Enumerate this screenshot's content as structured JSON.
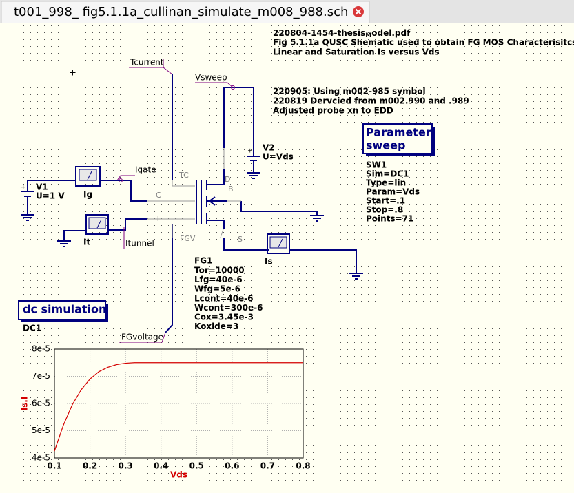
{
  "tab": {
    "title": "t001_998_ fig5.1.1a_cullinan_simulate_m008_988.sch"
  },
  "header_note": {
    "file": [
      "220804-1454-thesis",
      "M",
      "odel.pdf"
    ],
    "lines": [
      "Fig 5.1.1a QUSC Shematic used to obtain FG MOS Characterisitcs",
      "Linear and Saturation Is versus Vds"
    ]
  },
  "revision_note": {
    "lines": [
      "220905: Using m002-985 symbol",
      "220819 Dervcied from m002.990 and .989",
      "Adjusted probe xn to EDD"
    ]
  },
  "wire_labels": [
    "Tcurrent",
    "Vsweep",
    "Igate",
    "Itunnel",
    "FGvoltage"
  ],
  "sources": [
    {
      "name": "V1",
      "value": "U=1 V"
    },
    {
      "name": "V2",
      "value": "U=Vds"
    }
  ],
  "probes": [
    "Ig",
    "It",
    "Is"
  ],
  "pins": [
    "TC",
    "D",
    "B",
    "C",
    "T",
    "FGV",
    "S"
  ],
  "device": {
    "name": "FG1",
    "props": [
      "Tor=10000",
      "Lfg=40e-6",
      "Wfg=5e-6",
      "Lcont=40e-6",
      "Wcont=300e-6",
      "Cox=3.45e-3",
      "Koxide=3"
    ]
  },
  "sweep": {
    "title": [
      "Parameter",
      "sweep"
    ],
    "name": "SW1",
    "props": [
      "Sim=DC1",
      "Type=lin",
      "Param=Vds",
      "Start=.1",
      "Stop=.8",
      "Points=71"
    ]
  },
  "simulation": {
    "title": "dc simulation",
    "name": "DC1"
  },
  "chart_data": {
    "type": "line",
    "xlabel": "Vds",
    "ylabel": "Is.I",
    "color": "#d40000",
    "x": [
      0.1,
      0.125,
      0.15,
      0.175,
      0.2,
      0.225,
      0.25,
      0.275,
      0.3,
      0.325,
      0.35,
      0.4,
      0.5,
      0.6,
      0.7,
      0.8
    ],
    "values": [
      4.25e-05,
      5.2e-05,
      5.95e-05,
      6.5e-05,
      6.9e-05,
      7.17e-05,
      7.33e-05,
      7.43e-05,
      7.48e-05,
      7.5e-05,
      7.5e-05,
      7.5e-05,
      7.5e-05,
      7.5e-05,
      7.5e-05,
      7.5e-05
    ],
    "xlim": [
      0.1,
      0.8
    ],
    "xticks": [
      0.1,
      0.2,
      0.3,
      0.4,
      0.5,
      0.6,
      0.7,
      0.8
    ],
    "ylim": [
      4e-05,
      8e-05
    ],
    "yticks": [
      {
        "value": 4e-05,
        "label": "4e-5"
      },
      {
        "value": 5e-05,
        "label": "5e-5"
      },
      {
        "value": 6e-05,
        "label": "6e-5"
      },
      {
        "value": 7e-05,
        "label": "7e-5"
      },
      {
        "value": 8e-05,
        "label": "8e-5"
      }
    ],
    "grid": true
  }
}
